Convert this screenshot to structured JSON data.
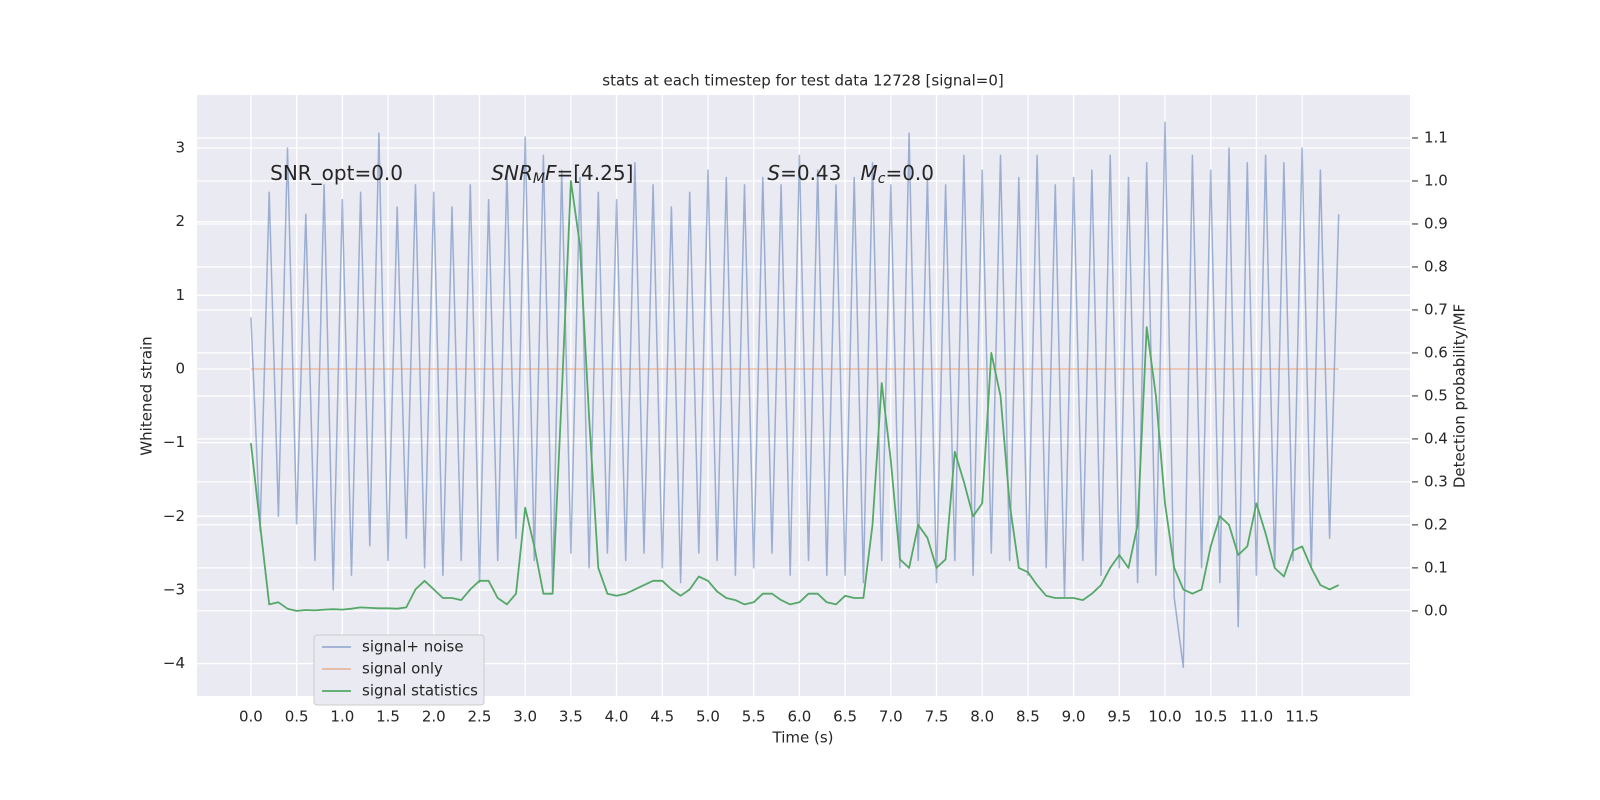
{
  "chart_data": {
    "type": "line",
    "title": "stats at each timestep for test data 12728 [signal=0]",
    "xlabel": "Time (s)",
    "ylabel": "Whitened strain",
    "y2label": "Detection probability/MF",
    "x": [
      0,
      0.1,
      0.2,
      0.3,
      0.4,
      0.5,
      0.6,
      0.7,
      0.8,
      0.9,
      1,
      1.1,
      1.2,
      1.3,
      1.4,
      1.5,
      1.6,
      1.7,
      1.8,
      1.9,
      2,
      2.1,
      2.2,
      2.3,
      2.4,
      2.5,
      2.6,
      2.7,
      2.8,
      2.9,
      3,
      3.1,
      3.2,
      3.3,
      3.4,
      3.5,
      3.6,
      3.7,
      3.8,
      3.9,
      4,
      4.1,
      4.2,
      4.3,
      4.4,
      4.5,
      4.6,
      4.7,
      4.8,
      4.9,
      5,
      5.1,
      5.2,
      5.3,
      5.4,
      5.5,
      5.6,
      5.7,
      5.8,
      5.9,
      6,
      6.1,
      6.2,
      6.3,
      6.4,
      6.5,
      6.6,
      6.7,
      6.8,
      6.9,
      7,
      7.1,
      7.2,
      7.3,
      7.4,
      7.5,
      7.6,
      7.7,
      7.8,
      7.9,
      8,
      8.1,
      8.2,
      8.3,
      8.4,
      8.5,
      8.6,
      8.7,
      8.8,
      8.9,
      9,
      9.1,
      9.2,
      9.3,
      9.4,
      9.5,
      9.6,
      9.7,
      9.8,
      9.9,
      10,
      10.1,
      10.2,
      10.3,
      10.4,
      10.5,
      10.6,
      10.7,
      10.8,
      10.9,
      11,
      11.1,
      11.2,
      11.3,
      11.4,
      11.5,
      11.6,
      11.7,
      11.8,
      11.9
    ],
    "series": [
      {
        "name": "signal+ noise",
        "color": "#4c72b0",
        "opacity": 0.5,
        "axis": "y",
        "values": [
          0.7,
          -2.2,
          2.4,
          -2.0,
          3.0,
          -2.1,
          2.1,
          -2.6,
          2.5,
          -3.0,
          2.3,
          -2.8,
          2.4,
          -2.4,
          3.2,
          -2.6,
          2.2,
          -2.3,
          2.5,
          -2.7,
          2.4,
          -2.8,
          2.2,
          -2.6,
          2.5,
          -2.9,
          2.3,
          -2.6,
          2.7,
          -2.3,
          3.15,
          -2.6,
          2.9,
          -3.0,
          2.7,
          -2.5,
          2.6,
          -2.7,
          2.4,
          -2.5,
          2.3,
          -2.6,
          2.8,
          -2.5,
          2.5,
          -2.7,
          2.2,
          -2.9,
          2.4,
          -2.5,
          2.7,
          -2.6,
          2.6,
          -2.8,
          2.5,
          -2.7,
          2.6,
          -2.5,
          2.5,
          -2.8,
          2.9,
          -2.6,
          2.7,
          -2.8,
          2.5,
          -2.8,
          2.6,
          -2.9,
          2.8,
          -2.6,
          2.5,
          -2.7,
          3.2,
          -2.6,
          2.6,
          -2.9,
          2.5,
          -2.6,
          2.9,
          -2.8,
          2.7,
          -2.5,
          2.9,
          -2.6,
          2.6,
          -2.8,
          2.9,
          -2.7,
          2.5,
          -3.1,
          2.6,
          -2.6,
          2.7,
          -2.8,
          2.9,
          -2.7,
          2.6,
          -2.9,
          2.8,
          -2.8,
          3.35,
          -3.1,
          -4.05,
          2.9,
          -2.7,
          2.7,
          -2.9,
          3.0,
          -3.5,
          2.8,
          -2.8,
          2.9,
          -2.7,
          2.8,
          -2.6,
          3.0,
          -2.7,
          2.7,
          -2.3,
          2.1
        ]
      },
      {
        "name": "signal only",
        "color": "#dd8452",
        "opacity": 0.5,
        "axis": "y",
        "values": [
          0,
          0,
          0,
          0,
          0,
          0,
          0,
          0,
          0,
          0,
          0,
          0,
          0,
          0,
          0,
          0,
          0,
          0,
          0,
          0,
          0,
          0,
          0,
          0,
          0,
          0,
          0,
          0,
          0,
          0,
          0,
          0,
          0,
          0,
          0,
          0,
          0,
          0,
          0,
          0,
          0,
          0,
          0,
          0,
          0,
          0,
          0,
          0,
          0,
          0,
          0,
          0,
          0,
          0,
          0,
          0,
          0,
          0,
          0,
          0,
          0,
          0,
          0,
          0,
          0,
          0,
          0,
          0,
          0,
          0,
          0,
          0,
          0,
          0,
          0,
          0,
          0,
          0,
          0,
          0,
          0,
          0,
          0,
          0,
          0,
          0,
          0,
          0,
          0,
          0,
          0,
          0,
          0,
          0,
          0,
          0,
          0,
          0,
          0,
          0,
          0,
          0,
          0,
          0,
          0,
          0,
          0,
          0,
          0,
          0,
          0,
          0,
          0,
          0,
          0,
          0,
          0,
          0,
          0,
          0
        ]
      },
      {
        "name": "signal statistics",
        "color": "#55a868",
        "opacity": 1,
        "axis": "y2",
        "values": [
          0.39,
          0.2,
          0.015,
          0.02,
          0.005,
          0,
          0.002,
          0.001,
          0.003,
          0.004,
          0.003,
          0.005,
          0.008,
          0.007,
          0.006,
          0.006,
          0.005,
          0.008,
          0.05,
          0.07,
          0.05,
          0.03,
          0.03,
          0.025,
          0.05,
          0.07,
          0.07,
          0.03,
          0.015,
          0.04,
          0.24,
          0.15,
          0.04,
          0.04,
          0.5,
          1.0,
          0.85,
          0.45,
          0.1,
          0.04,
          0.035,
          0.04,
          0.05,
          0.06,
          0.07,
          0.07,
          0.05,
          0.035,
          0.05,
          0.08,
          0.07,
          0.045,
          0.03,
          0.025,
          0.015,
          0.02,
          0.04,
          0.04,
          0.025,
          0.015,
          0.02,
          0.04,
          0.04,
          0.02,
          0.015,
          0.035,
          0.03,
          0.03,
          0.2,
          0.53,
          0.35,
          0.12,
          0.1,
          0.2,
          0.17,
          0.1,
          0.12,
          0.37,
          0.3,
          0.22,
          0.25,
          0.6,
          0.5,
          0.25,
          0.1,
          0.09,
          0.06,
          0.035,
          0.03,
          0.03,
          0.03,
          0.025,
          0.04,
          0.06,
          0.1,
          0.13,
          0.1,
          0.2,
          0.66,
          0.5,
          0.25,
          0.1,
          0.05,
          0.04,
          0.05,
          0.15,
          0.22,
          0.2,
          0.13,
          0.15,
          0.25,
          0.18,
          0.1,
          0.08,
          0.14,
          0.15,
          0.1,
          0.06,
          0.05,
          0.06
        ]
      }
    ],
    "annotations": [
      {
        "parts": [
          {
            "text": "SNR_opt=0.0"
          }
        ]
      },
      {
        "parts": [
          {
            "text": "SNR",
            "italic": true
          },
          {
            "text": "M",
            "italic": true,
            "sub": true
          },
          {
            "text": "F",
            "italic": true
          },
          {
            "text": "=[4.25]"
          }
        ]
      },
      {
        "parts": [
          {
            "text": "S",
            "italic": true
          },
          {
            "text": "=0.43   "
          },
          {
            "text": "M",
            "italic": true
          },
          {
            "text": "c",
            "italic": true,
            "sub": true
          },
          {
            "text": "=0.0"
          }
        ]
      }
    ],
    "xlim": [
      -0.59,
      12.68
    ],
    "ylim": [
      -4.44,
      3.72
    ],
    "y2lim": [
      -0.198,
      1.2
    ],
    "xticks": [
      {
        "value": 0,
        "label": "0.0"
      },
      0.5,
      {
        "value": 1,
        "label": "1.0"
      },
      1.5,
      {
        "value": 2,
        "label": "2.0"
      },
      2.5,
      {
        "value": 3,
        "label": "3.0"
      },
      3.5,
      {
        "value": 4,
        "label": "4.0"
      },
      4.5,
      {
        "value": 5,
        "label": "5.0"
      },
      5.5,
      {
        "value": 6,
        "label": "6.0"
      },
      6.5,
      {
        "value": 7,
        "label": "7.0"
      },
      7.5,
      {
        "value": 8,
        "label": "8.0"
      },
      8.5,
      {
        "value": 9,
        "label": "9.0"
      },
      9.5,
      {
        "value": 10,
        "label": "10.0"
      },
      10.5,
      {
        "value": 11,
        "label": "11.0"
      },
      11.5
    ],
    "yticks": [
      {
        "value": -4,
        "label": "−4"
      },
      {
        "value": -3,
        "label": "−3"
      },
      {
        "value": -2,
        "label": "−2"
      },
      {
        "value": -1,
        "label": "−1"
      },
      0,
      1,
      2,
      3
    ],
    "y2ticks": [
      {
        "value": 0,
        "label": "0.0"
      },
      0.1,
      0.2,
      0.3,
      0.4,
      0.5,
      0.6,
      0.7,
      0.8,
      0.9,
      {
        "value": 1,
        "label": "1.0"
      },
      1.1
    ],
    "grid": true,
    "legend": "lower left",
    "background": "#eaeaf2"
  }
}
